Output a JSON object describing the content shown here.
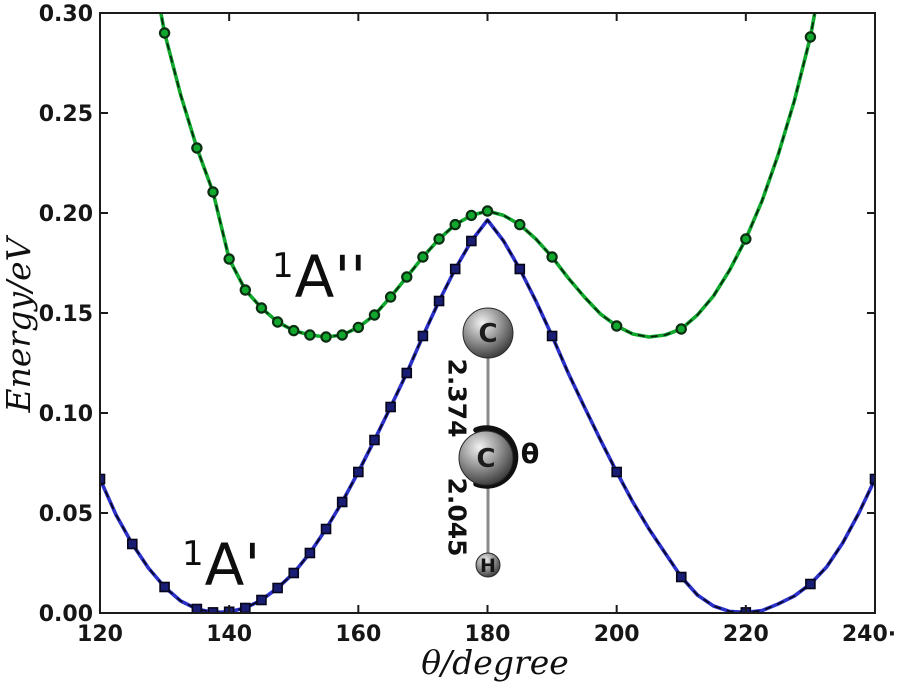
{
  "figure": {
    "background": "#ffffff",
    "axis_color": "#1b1b1b"
  },
  "chart_data": {
    "type": "line",
    "title": "",
    "xlabel": "θ/degree",
    "ylabel": "Energy/eV",
    "xlim": [
      120,
      240
    ],
    "ylim": [
      0,
      0.3
    ],
    "grid": false,
    "legend": "none (inline curve labels)",
    "x_ticks": [
      120,
      140,
      160,
      180,
      200,
      220,
      240
    ],
    "x_tick_labels": [
      "120",
      "140",
      "160",
      "180",
      "200",
      "220",
      "240·"
    ],
    "y_ticks": [
      0.0,
      0.05,
      0.1,
      0.15,
      0.2,
      0.25,
      0.3
    ],
    "y_tick_labels": [
      "0.00",
      "0.05",
      "0.10",
      "0.15",
      "0.20",
      "0.25",
      "0.30"
    ],
    "series": [
      {
        "name": "1A''",
        "color": "#10a82d",
        "dash_color": "#07290f",
        "marker": "circle",
        "marker_fill": "#10a82d",
        "marker_edge": "#0b2d12",
        "points": [
          [
            129.2,
            0.304
          ],
          [
            130,
            0.29
          ],
          [
            132.5,
            0.259
          ],
          [
            135,
            0.2325
          ],
          [
            137.5,
            0.2105
          ],
          [
            140,
            0.177
          ],
          [
            142.5,
            0.1615
          ],
          [
            145,
            0.1525
          ],
          [
            147.5,
            0.1455
          ],
          [
            150,
            0.1412
          ],
          [
            152.5,
            0.139
          ],
          [
            155,
            0.138
          ],
          [
            157.5,
            0.139
          ],
          [
            160,
            0.1428
          ],
          [
            162.5,
            0.149
          ],
          [
            165,
            0.158
          ],
          [
            167.5,
            0.168
          ],
          [
            170,
            0.178
          ],
          [
            172.5,
            0.187
          ],
          [
            175,
            0.1942
          ],
          [
            177.5,
            0.1988
          ],
          [
            180,
            0.201
          ],
          [
            182.5,
            0.1988
          ],
          [
            185,
            0.1942
          ],
          [
            187.5,
            0.187
          ],
          [
            190,
            0.178
          ],
          [
            192.5,
            0.1675
          ],
          [
            195,
            0.158
          ],
          [
            197.5,
            0.1495
          ],
          [
            200,
            0.1435
          ],
          [
            202.5,
            0.1395
          ],
          [
            205,
            0.138
          ],
          [
            207.5,
            0.139
          ],
          [
            210,
            0.142
          ],
          [
            212.5,
            0.149
          ],
          [
            215,
            0.1585
          ],
          [
            217.5,
            0.1715
          ],
          [
            220,
            0.187
          ],
          [
            222.5,
            0.206
          ],
          [
            225,
            0.229
          ],
          [
            227.5,
            0.256
          ],
          [
            230,
            0.288
          ],
          [
            230.9,
            0.304
          ]
        ],
        "marker_x": [
          130,
          135,
          137.5,
          140,
          142.5,
          145,
          147.5,
          150,
          152.5,
          155,
          157.5,
          160,
          162.5,
          165,
          167.5,
          170,
          172.5,
          175,
          177.5,
          180,
          185,
          190,
          200,
          210,
          220,
          230
        ]
      },
      {
        "name": "1A'",
        "color": "#2a30c8",
        "dash_color": "#07071f",
        "marker": "square",
        "marker_fill": "#1a1d74",
        "marker_edge": "#05051a",
        "points": [
          [
            120,
            0.067
          ],
          [
            122.5,
            0.049
          ],
          [
            125,
            0.0345
          ],
          [
            127.5,
            0.0225
          ],
          [
            130,
            0.013
          ],
          [
            132.5,
            0.006
          ],
          [
            135,
            0.002
          ],
          [
            137.5,
            0.0003
          ],
          [
            140,
            0.0006
          ],
          [
            142.5,
            0.0025
          ],
          [
            145,
            0.0065
          ],
          [
            147.5,
            0.0125
          ],
          [
            150,
            0.02
          ],
          [
            152.5,
            0.03
          ],
          [
            155,
            0.042
          ],
          [
            157.5,
            0.0555
          ],
          [
            160,
            0.0705
          ],
          [
            162.5,
            0.0865
          ],
          [
            165,
            0.103
          ],
          [
            167.5,
            0.12
          ],
          [
            170,
            0.1385
          ],
          [
            172.5,
            0.156
          ],
          [
            175,
            0.172
          ],
          [
            177.5,
            0.186
          ],
          [
            180,
            0.1965
          ],
          [
            182.5,
            0.186
          ],
          [
            185,
            0.172
          ],
          [
            187.5,
            0.156
          ],
          [
            190,
            0.1385
          ],
          [
            192.5,
            0.12
          ],
          [
            195,
            0.103
          ],
          [
            197.5,
            0.0865
          ],
          [
            200,
            0.0705
          ],
          [
            202.5,
            0.0555
          ],
          [
            205,
            0.042
          ],
          [
            207.5,
            0.03
          ],
          [
            210,
            0.018
          ],
          [
            212.5,
            0.009
          ],
          [
            215,
            0.0035
          ],
          [
            217.5,
            0.0008
          ],
          [
            220,
            0.0003
          ],
          [
            222.5,
            0.0012
          ],
          [
            225,
            0.0045
          ],
          [
            227.5,
            0.0085
          ],
          [
            230,
            0.0145
          ],
          [
            232.5,
            0.023
          ],
          [
            235,
            0.035
          ],
          [
            237.5,
            0.05
          ],
          [
            240,
            0.067
          ]
        ],
        "marker_x": [
          120,
          125,
          130,
          135,
          137.5,
          140,
          142.5,
          145,
          147.5,
          150,
          152.5,
          155,
          157.5,
          160,
          162.5,
          165,
          167.5,
          170,
          172.5,
          175,
          177.5,
          185,
          190,
          200,
          210,
          220,
          230,
          240
        ]
      }
    ]
  },
  "labels": {
    "upper_state": {
      "sup": "1",
      "main": "A''"
    },
    "lower_state": {
      "sup": "1",
      "main": "A'"
    }
  },
  "molecule": {
    "atom_top": "C",
    "atom_middle": "C",
    "atom_bottom": "H",
    "bond_top_length": "2.374",
    "bond_bottom_length": "2.045",
    "angle_label": "θ"
  }
}
